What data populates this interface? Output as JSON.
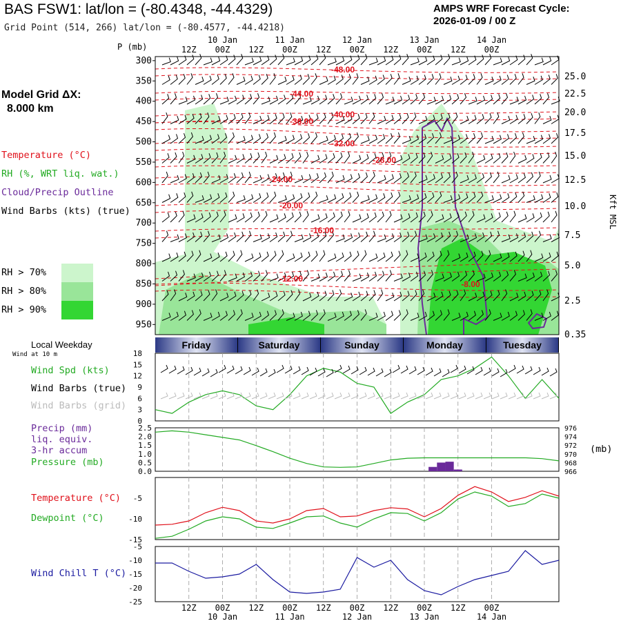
{
  "header": {
    "title": "BAS FSW1:  lat/lon = (-80.4348, -44.4329)",
    "subtitle": "Grid Point (514, 266) lat/lon = (-80.4577, -44.4218)",
    "cycle_line1": "AMPS WRF Forecast Cycle:",
    "cycle_line2": "2026-01-09 / 00  Z",
    "grid_label_line1": "Model Grid ΔX:",
    "grid_label_line2": "8.000 km"
  },
  "legend": {
    "temperature": "Temperature (°C)",
    "rh": "RH (%, WRT liq. wat.)",
    "cloud": "Cloud/Precip Outline",
    "wind": "Wind Barbs (kts) (true)",
    "rh70": "RH > 70%",
    "rh80": "RH > 80%",
    "rh90": "RH > 90%",
    "local_weekday": "Local Weekday",
    "wind10": "Wind at 10 m",
    "wspd": "Wind Spd (kts)",
    "barbs_true": "Wind Barbs (true)",
    "barbs_grid": "Wind Barbs (grid)",
    "precip1": "Precip (mm)",
    "precip2": "liq. equiv.",
    "precip3": "3-hr accum",
    "pressure": "Pressure (mb)",
    "pressure_unit": "(mb)",
    "temp2": "Temperature (°C)",
    "dewpoint": "Dewpoint (°C)",
    "windchill": "Wind Chill T (°C)"
  },
  "colors": {
    "temperature": "#e0101a",
    "rh": "#22aa22",
    "cloud": "#6a2a9a",
    "windchill": "#1a1aa0",
    "rh70": "#ccf5cc",
    "rh80": "#99e599",
    "rh90": "#33d633"
  },
  "axes": {
    "time_top": [
      "12Z",
      "00Z",
      "12Z",
      "00Z",
      "12Z",
      "00Z",
      "12Z",
      "00Z",
      "12Z",
      "00Z"
    ],
    "dates": [
      "10 Jan",
      "11 Jan",
      "12 Jan",
      "13 Jan",
      "14 Jan"
    ],
    "p_label": "P (mb)",
    "pressure_levels": [
      "300",
      "350",
      "400",
      "450",
      "500",
      "550",
      "600",
      "650",
      "700",
      "750",
      "800",
      "850",
      "900",
      "950"
    ],
    "kft_label": "Kft MSL",
    "kft_ticks": [
      "25.0",
      "22.5",
      "20.0",
      "17.5",
      "15.0",
      "12.5",
      "10.0",
      "7.5",
      "5.0",
      "2.5",
      "0.35"
    ],
    "days": [
      "Friday",
      "Saturday",
      "Sunday",
      "Monday",
      "Tuesday"
    ],
    "wspd_ticks": [
      "18",
      "15",
      "12",
      "9",
      "6",
      "3",
      "0"
    ],
    "precip_ticks": [
      "2.5",
      "2.0",
      "1.5",
      "1.0",
      "0.5",
      "0.0"
    ],
    "pres_ticks": [
      "976",
      "974",
      "972",
      "970",
      "968",
      "966"
    ],
    "temp_ticks": [
      "-5",
      "-10",
      "-15"
    ],
    "wc_ticks": [
      "-5",
      "-10",
      "-15",
      "-20",
      "-25"
    ]
  },
  "isotherm_labels": [
    "-48.00",
    "-44.00",
    "-40.00",
    "-36.00",
    "-32.00",
    "-28.00",
    "-24.00",
    "-20.00",
    "-16.00",
    "-12.00",
    "-8.00"
  ],
  "chart_data": [
    {
      "type": "line",
      "title": "Wind Spd (kts)",
      "x_hours": [
        0,
        6,
        12,
        18,
        24,
        30,
        36,
        42,
        48,
        54,
        60,
        66,
        72,
        78,
        84,
        90,
        96,
        102,
        108,
        114,
        120,
        126,
        132,
        138,
        144
      ],
      "series": [
        {
          "name": "Wind Spd (kts)",
          "values": [
            3,
            2,
            5,
            7,
            8,
            7,
            4,
            3,
            7,
            12,
            14,
            13,
            10,
            9,
            2,
            5,
            7,
            11,
            12,
            14,
            17,
            12,
            6,
            11,
            6
          ]
        }
      ],
      "ylim": [
        0,
        18
      ]
    },
    {
      "type": "line",
      "title": "Pressure (mb)",
      "series": [
        {
          "name": "Pressure (mb)",
          "values": [
            975.0,
            975.3,
            975.0,
            974.4,
            973.8,
            973.2,
            971.9,
            970.5,
            969.0,
            967.8,
            967.0,
            966.9,
            967.0,
            967.8,
            968.6,
            969.0,
            969.1,
            969.1,
            969.1,
            969.1,
            969.1,
            969.1,
            969.1,
            968.9,
            968.4
          ]
        }
      ],
      "ylim": [
        966,
        976
      ]
    },
    {
      "type": "bar",
      "title": "Precip (mm)",
      "x_hours": [
        99,
        102,
        105,
        108
      ],
      "values": [
        0.25,
        0.5,
        0.55,
        0.1
      ],
      "ylim": [
        0,
        2.5
      ]
    },
    {
      "type": "line",
      "title": "Temperature / Dewpoint (°C)",
      "series": [
        {
          "name": "Temperature",
          "values": [
            -11.5,
            -11.3,
            -10.5,
            -8.5,
            -7.2,
            -8.0,
            -10.5,
            -11.0,
            -10.0,
            -8.0,
            -7.5,
            -9.5,
            -9.3,
            -8.0,
            -7.3,
            -7.6,
            -9.5,
            -7.5,
            -4.3,
            -2.2,
            -3.5,
            -5.8,
            -4.8,
            -3.2,
            -4.5
          ]
        },
        {
          "name": "Dewpoint",
          "values": [
            -14.7,
            -14.2,
            -12.5,
            -10.5,
            -9.5,
            -10.0,
            -12.0,
            -12.3,
            -11.0,
            -9.5,
            -9.3,
            -11.0,
            -12.0,
            -10.0,
            -8.5,
            -8.7,
            -10.5,
            -8.5,
            -5.2,
            -3.5,
            -4.5,
            -7.0,
            -6.3,
            -4.0,
            -5.0
          ]
        }
      ],
      "ylim": [
        -15,
        0
      ]
    },
    {
      "type": "line",
      "title": "Wind Chill T (°C)",
      "series": [
        {
          "name": "Wind Chill T",
          "values": [
            -11,
            -11,
            -14,
            -16.5,
            -16,
            -15,
            -11.5,
            -17,
            -21.5,
            -22,
            -21.5,
            -20.5,
            -9,
            -12.5,
            -10,
            -17,
            -21,
            -22.5,
            -19.5,
            -17,
            -15.5,
            -14,
            -6.5,
            -11.5,
            -10
          ]
        }
      ],
      "ylim": [
        -25,
        -5
      ]
    }
  ]
}
